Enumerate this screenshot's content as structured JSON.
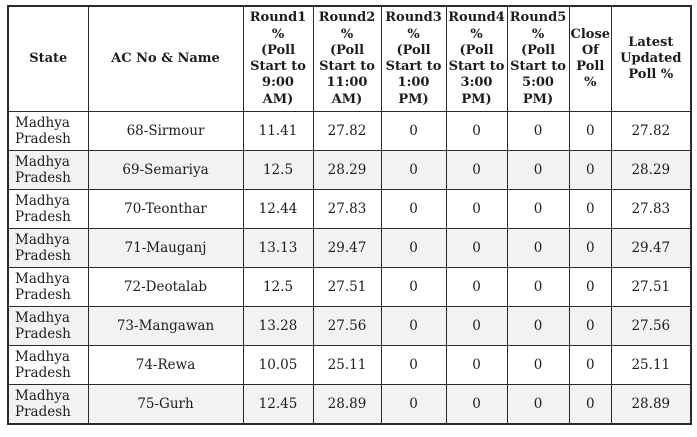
{
  "colors": {
    "background": "#ffffff",
    "border": "#2a2a2a",
    "text": "#1c1c1c",
    "row_alt": "#f2f2f2"
  },
  "chart_data": {
    "type": "table",
    "title": "",
    "columns": [
      "State",
      "AC No & Name",
      "Round1 % (Poll Start to 9:00 AM)",
      "Round2 % (Poll Start to 11:00 AM)",
      "Round3 % (Poll Start to 1:00 PM)",
      "Round4 % (Poll Start to 3:00 PM)",
      "Round5 % (Poll Start to 5:00 PM)",
      "Close Of Poll %",
      "Latest Updated Poll %"
    ],
    "header_lines": [
      [
        "State"
      ],
      [
        "AC No & Name"
      ],
      [
        "Round1",
        "%",
        "(Poll",
        "Start to",
        "9:00",
        "AM)"
      ],
      [
        "Round2",
        "%",
        "(Poll",
        "Start to",
        "11:00",
        "AM)"
      ],
      [
        "Round3",
        "%",
        "(Poll",
        "Start to",
        "1:00",
        "PM)"
      ],
      [
        "Round4",
        "%",
        "(Poll",
        "Start to",
        "3:00",
        "PM)"
      ],
      [
        "Round5",
        "%",
        "(Poll",
        "Start to",
        "5:00",
        "PM)"
      ],
      [
        "Close",
        "Of",
        "Poll",
        "%"
      ],
      [
        "Latest",
        "Updated",
        "Poll %"
      ]
    ],
    "rows": [
      [
        "Madhya Pradesh",
        "68-Sirmour",
        11.41,
        27.82,
        0,
        0,
        0,
        0,
        27.82
      ],
      [
        "Madhya Pradesh",
        "69-Semariya",
        12.5,
        28.29,
        0,
        0,
        0,
        0,
        28.29
      ],
      [
        "Madhya Pradesh",
        "70-Teonthar",
        12.44,
        27.83,
        0,
        0,
        0,
        0,
        27.83
      ],
      [
        "Madhya Pradesh",
        "71-Mauganj",
        13.13,
        29.47,
        0,
        0,
        0,
        0,
        29.47
      ],
      [
        "Madhya Pradesh",
        "72-Deotalab",
        12.5,
        27.51,
        0,
        0,
        0,
        0,
        27.51
      ],
      [
        "Madhya Pradesh",
        "73-Mangawan",
        13.28,
        27.56,
        0,
        0,
        0,
        0,
        27.56
      ],
      [
        "Madhya Pradesh",
        "74-Rewa",
        10.05,
        25.11,
        0,
        0,
        0,
        0,
        25.11
      ],
      [
        "Madhya Pradesh",
        "75-Gurh",
        12.45,
        28.89,
        0,
        0,
        0,
        0,
        28.89
      ]
    ],
    "layout": {
      "grid": true,
      "alternating_row_shading": true
    }
  }
}
